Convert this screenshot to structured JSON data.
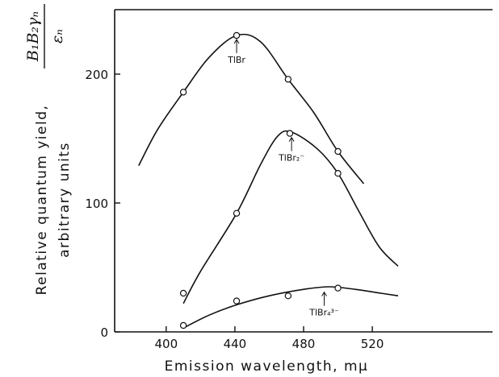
{
  "chart_data": {
    "type": "line",
    "xlabel": "Emission wavelength, mμ",
    "ylabel_line1": "Relative quantum yield,",
    "ylabel_line2": "arbitrary units",
    "ylabel_fraction_numerator": "B₁B₂γₙ",
    "ylabel_fraction_denominator": "εₙ",
    "xlim": [
      370,
      590
    ],
    "ylim": [
      0,
      250
    ],
    "x_ticks": [
      400,
      440,
      480,
      520
    ],
    "y_ticks": [
      0,
      100,
      200
    ],
    "grid": false,
    "series": [
      {
        "annotation": "TlBr",
        "annotation_at": [
          441,
          230
        ],
        "points": [
          [
            410,
            186
          ],
          [
            441,
            230
          ],
          [
            471,
            196
          ],
          [
            500,
            140
          ]
        ],
        "curve": [
          [
            384,
            129
          ],
          [
            395,
            157
          ],
          [
            410,
            186
          ],
          [
            425,
            213
          ],
          [
            441,
            230
          ],
          [
            455,
            225
          ],
          [
            471,
            196
          ],
          [
            486,
            170
          ],
          [
            500,
            140
          ],
          [
            515,
            115
          ]
        ]
      },
      {
        "annotation": "TlBr₂⁻",
        "annotation_at": [
          473,
          154
        ],
        "points": [
          [
            410,
            30
          ],
          [
            441,
            92
          ],
          [
            472,
            154
          ],
          [
            500,
            123
          ]
        ],
        "curve": [
          [
            410,
            22
          ],
          [
            420,
            47
          ],
          [
            441,
            92
          ],
          [
            455,
            130
          ],
          [
            465,
            152
          ],
          [
            473,
            155
          ],
          [
            488,
            142
          ],
          [
            500,
            123
          ],
          [
            512,
            94
          ],
          [
            524,
            66
          ],
          [
            535,
            51
          ]
        ]
      },
      {
        "annotation": "TlBr₄³⁻",
        "annotation_at": [
          492,
          34
        ],
        "points": [
          [
            410,
            5
          ],
          [
            441,
            24
          ],
          [
            471,
            28
          ],
          [
            500,
            34
          ]
        ],
        "curve": [
          [
            410,
            3
          ],
          [
            425,
            13
          ],
          [
            441,
            21
          ],
          [
            460,
            28
          ],
          [
            480,
            33
          ],
          [
            495,
            35
          ],
          [
            510,
            33
          ],
          [
            525,
            30
          ],
          [
            535,
            28
          ]
        ]
      }
    ]
  }
}
